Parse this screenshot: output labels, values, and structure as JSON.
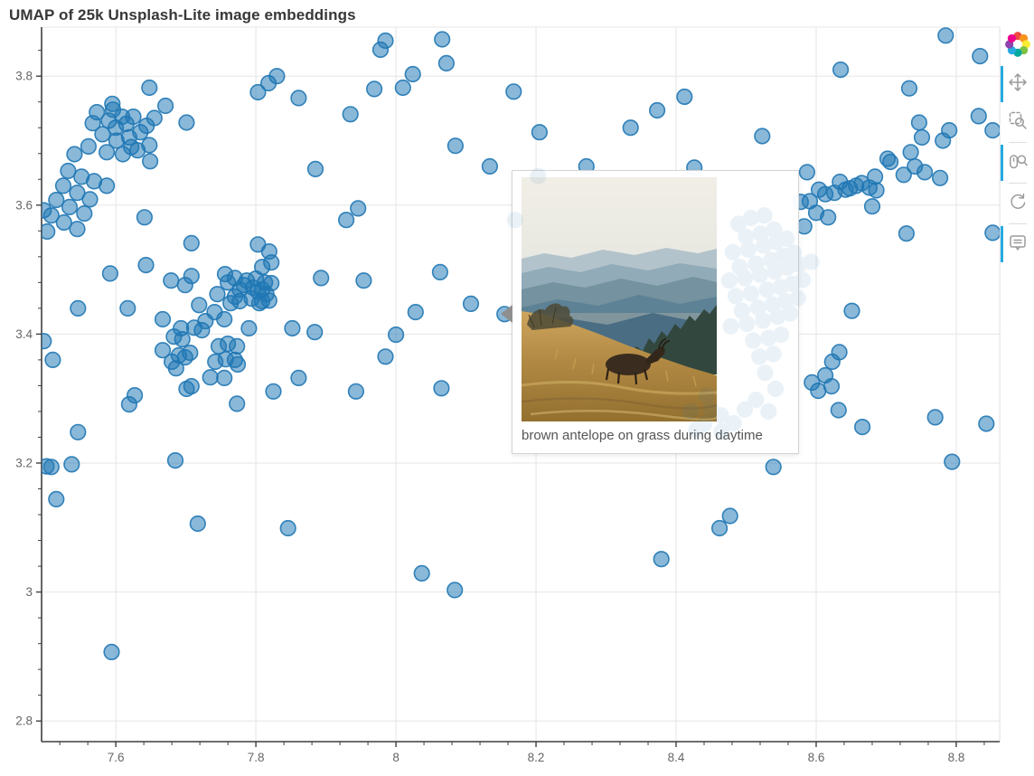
{
  "title": "UMAP of 25k Unsplash-Lite image embeddings",
  "tooltip": {
    "caption": "brown antelope on grass during daytime"
  },
  "toolbar": {
    "logo_name": "bokeh-logo",
    "logo_colors": [
      "#ef4a3e",
      "#f7941e",
      "#f9ed32",
      "#7dc242",
      "#00a79d",
      "#27aae1",
      "#8e44ad",
      "#ec008c"
    ],
    "active_color": "#26aae1",
    "icon_color": "#9b9b9b",
    "tools": [
      {
        "name": "pan",
        "label": "Pan",
        "active": true
      },
      {
        "name": "box-zoom",
        "label": "Box Zoom",
        "active": false
      },
      {
        "name": "wheel-zoom",
        "label": "Wheel Zoom",
        "active": true
      },
      {
        "name": "reset",
        "label": "Reset",
        "active": false
      },
      {
        "name": "hover",
        "label": "Hover",
        "active": true
      }
    ]
  },
  "chart_data": {
    "type": "scatter",
    "title": "UMAP of 25k Unsplash-Lite image embeddings",
    "xlabel": "",
    "ylabel": "",
    "grid": true,
    "x_range": [
      7.494,
      8.862
    ],
    "y_range": [
      2.768,
      3.876
    ],
    "x_ticks": {
      "values": [
        7.6,
        7.8,
        8.0,
        8.2,
        8.4,
        8.6,
        8.8
      ],
      "labels": [
        "7.6",
        "7.8",
        "8",
        "8.2",
        "8.4",
        "8.6",
        "8.8"
      ]
    },
    "y_ticks": {
      "values": [
        3.8,
        3.6,
        3.4,
        3.2,
        3.0,
        2.8
      ],
      "labels": [
        "3.8",
        "3.6",
        "3.4",
        "3.2",
        "3",
        "2.8"
      ]
    },
    "minor_tick_step": 0.04,
    "colors": {
      "fill": "#1f77b4",
      "fill_opacity": 0.52,
      "stroke": "#1f77b4",
      "stroke_opacity": 0.9,
      "grid": "#e5e5e5",
      "axis": "#3f3f3f",
      "tick_label": "#666666",
      "frame_outline": "#e5e5e5"
    },
    "marker_radius": 8.3,
    "hover_point": [
      8.155,
      3.431
    ],
    "points": [
      [
        7.985,
        3.855
      ],
      [
        7.978,
        3.841
      ],
      [
        8.066,
        3.857
      ],
      [
        8.072,
        3.82
      ],
      [
        8.024,
        3.803
      ],
      [
        8.01,
        3.782
      ],
      [
        8.168,
        3.776
      ],
      [
        8.205,
        3.713
      ],
      [
        7.83,
        3.8
      ],
      [
        7.818,
        3.789
      ],
      [
        7.803,
        3.775
      ],
      [
        7.861,
        3.766
      ],
      [
        7.648,
        3.782
      ],
      [
        7.671,
        3.754
      ],
      [
        7.595,
        3.757
      ],
      [
        7.609,
        3.737
      ],
      [
        7.701,
        3.728
      ],
      [
        7.935,
        3.741
      ],
      [
        7.969,
        3.78
      ],
      [
        8.085,
        3.692
      ],
      [
        8.134,
        3.66
      ],
      [
        7.573,
        3.744
      ],
      [
        7.59,
        3.731
      ],
      [
        7.6,
        3.72
      ],
      [
        7.615,
        3.726
      ],
      [
        7.625,
        3.737
      ],
      [
        7.581,
        3.71
      ],
      [
        7.601,
        3.7
      ],
      [
        7.619,
        3.705
      ],
      [
        7.635,
        3.713
      ],
      [
        7.561,
        3.691
      ],
      [
        7.587,
        3.682
      ],
      [
        7.61,
        3.679
      ],
      [
        7.631,
        3.685
      ],
      [
        7.648,
        3.693
      ],
      [
        7.541,
        3.679
      ],
      [
        7.655,
        3.735
      ],
      [
        7.596,
        3.748
      ],
      [
        7.567,
        3.727
      ],
      [
        7.644,
        3.723
      ],
      [
        7.622,
        3.69
      ],
      [
        7.641,
        3.581
      ],
      [
        7.649,
        3.668
      ],
      [
        7.532,
        3.653
      ],
      [
        7.551,
        3.644
      ],
      [
        7.569,
        3.637
      ],
      [
        7.587,
        3.63
      ],
      [
        7.525,
        3.63
      ],
      [
        7.545,
        3.619
      ],
      [
        7.563,
        3.609
      ],
      [
        7.515,
        3.608
      ],
      [
        7.534,
        3.597
      ],
      [
        7.555,
        3.587
      ],
      [
        7.508,
        3.584
      ],
      [
        7.526,
        3.573
      ],
      [
        7.545,
        3.563
      ],
      [
        7.502,
        3.559
      ],
      [
        7.497,
        3.592
      ],
      [
        7.592,
        3.494
      ],
      [
        7.546,
        3.44
      ],
      [
        7.617,
        3.44
      ],
      [
        7.643,
        3.507
      ],
      [
        7.497,
        3.389
      ],
      [
        7.51,
        3.36
      ],
      [
        7.708,
        3.541
      ],
      [
        7.627,
        3.305
      ],
      [
        7.619,
        3.291
      ],
      [
        7.546,
        3.248
      ],
      [
        7.501,
        3.195
      ],
      [
        7.508,
        3.194
      ],
      [
        7.537,
        3.198
      ],
      [
        7.515,
        3.144
      ],
      [
        7.685,
        3.204
      ],
      [
        7.717,
        3.106
      ],
      [
        7.846,
        3.099
      ],
      [
        8.037,
        3.029
      ],
      [
        8.084,
        3.003
      ],
      [
        7.594,
        2.907
      ],
      [
        7.708,
        3.49
      ],
      [
        7.699,
        3.476
      ],
      [
        7.719,
        3.445
      ],
      [
        7.667,
        3.423
      ],
      [
        7.741,
        3.434
      ],
      [
        7.728,
        3.42
      ],
      [
        7.755,
        3.423
      ],
      [
        7.693,
        3.409
      ],
      [
        7.712,
        3.41
      ],
      [
        7.723,
        3.406
      ],
      [
        7.683,
        3.396
      ],
      [
        7.695,
        3.392
      ],
      [
        7.667,
        3.375
      ],
      [
        7.706,
        3.371
      ],
      [
        7.69,
        3.367
      ],
      [
        7.699,
        3.364
      ],
      [
        7.68,
        3.357
      ],
      [
        7.686,
        3.347
      ],
      [
        7.747,
        3.381
      ],
      [
        7.76,
        3.385
      ],
      [
        7.773,
        3.381
      ],
      [
        7.757,
        3.361
      ],
      [
        7.77,
        3.36
      ],
      [
        7.742,
        3.357
      ],
      [
        7.774,
        3.353
      ],
      [
        7.735,
        3.333
      ],
      [
        7.755,
        3.332
      ],
      [
        7.708,
        3.319
      ],
      [
        7.679,
        3.483
      ],
      [
        7.77,
        3.487
      ],
      [
        7.787,
        3.483
      ],
      [
        7.8,
        3.486
      ],
      [
        7.813,
        3.48
      ],
      [
        7.777,
        3.469
      ],
      [
        7.796,
        3.472
      ],
      [
        7.809,
        3.469
      ],
      [
        7.822,
        3.479
      ],
      [
        7.794,
        3.455
      ],
      [
        7.777,
        3.451
      ],
      [
        7.764,
        3.448
      ],
      [
        7.809,
        3.451
      ],
      [
        7.819,
        3.452
      ],
      [
        7.76,
        3.48
      ],
      [
        7.756,
        3.493
      ],
      [
        7.745,
        3.462
      ],
      [
        7.805,
        3.448
      ],
      [
        7.79,
        3.409
      ],
      [
        7.783,
        3.476
      ],
      [
        7.803,
        3.466
      ],
      [
        7.815,
        3.462
      ],
      [
        7.77,
        3.458
      ],
      [
        7.809,
        3.504
      ],
      [
        7.822,
        3.511
      ],
      [
        7.803,
        3.539
      ],
      [
        7.819,
        3.528
      ],
      [
        7.852,
        3.409
      ],
      [
        7.954,
        3.483
      ],
      [
        8.0,
        3.399
      ],
      [
        7.884,
        3.403
      ],
      [
        7.885,
        3.656
      ],
      [
        7.929,
        3.577
      ],
      [
        7.946,
        3.595
      ],
      [
        7.893,
        3.487
      ],
      [
        7.985,
        3.365
      ],
      [
        7.943,
        3.311
      ],
      [
        8.065,
        3.316
      ],
      [
        8.107,
        3.447
      ],
      [
        8.063,
        3.496
      ],
      [
        8.028,
        3.434
      ],
      [
        7.861,
        3.332
      ],
      [
        7.825,
        3.311
      ],
      [
        7.773,
        3.292
      ],
      [
        7.701,
        3.315
      ],
      [
        8.272,
        3.66
      ],
      [
        8.426,
        3.658
      ],
      [
        8.373,
        3.747
      ],
      [
        8.412,
        3.768
      ],
      [
        8.335,
        3.72
      ],
      [
        8.523,
        3.707
      ],
      [
        8.733,
        3.781
      ],
      [
        8.635,
        3.81
      ],
      [
        8.834,
        3.831
      ],
      [
        8.785,
        3.863
      ],
      [
        8.648,
        3.626
      ],
      [
        8.657,
        3.63
      ],
      [
        8.665,
        3.634
      ],
      [
        8.676,
        3.627
      ],
      [
        8.684,
        3.644
      ],
      [
        8.686,
        3.623
      ],
      [
        8.702,
        3.672
      ],
      [
        8.706,
        3.667
      ],
      [
        8.725,
        3.647
      ],
      [
        8.729,
        3.556
      ],
      [
        8.735,
        3.682
      ],
      [
        8.741,
        3.66
      ],
      [
        8.747,
        3.728
      ],
      [
        8.751,
        3.705
      ],
      [
        8.755,
        3.651
      ],
      [
        8.777,
        3.642
      ],
      [
        8.781,
        3.7
      ],
      [
        8.79,
        3.716
      ],
      [
        8.832,
        3.738
      ],
      [
        8.68,
        3.598
      ],
      [
        8.587,
        3.651
      ],
      [
        8.604,
        3.624
      ],
      [
        8.613,
        3.617
      ],
      [
        8.626,
        3.619
      ],
      [
        8.634,
        3.636
      ],
      [
        8.642,
        3.624
      ],
      [
        8.591,
        3.606
      ],
      [
        8.578,
        3.605
      ],
      [
        8.6,
        3.588
      ],
      [
        8.617,
        3.581
      ],
      [
        8.583,
        3.567
      ],
      [
        8.852,
        3.716
      ],
      [
        8.852,
        3.557
      ],
      [
        8.651,
        3.436
      ],
      [
        8.633,
        3.372
      ],
      [
        8.623,
        3.357
      ],
      [
        8.613,
        3.336
      ],
      [
        8.622,
        3.319
      ],
      [
        8.594,
        3.325
      ],
      [
        8.603,
        3.312
      ],
      [
        8.632,
        3.282
      ],
      [
        8.666,
        3.256
      ],
      [
        8.77,
        3.271
      ],
      [
        8.843,
        3.261
      ],
      [
        8.794,
        3.202
      ],
      [
        8.539,
        3.194
      ],
      [
        8.477,
        3.118
      ],
      [
        8.462,
        3.099
      ],
      [
        8.379,
        3.051
      ]
    ],
    "ghost_points": [
      [
        8.489,
        3.571
      ],
      [
        8.507,
        3.58
      ],
      [
        8.526,
        3.584
      ],
      [
        8.5,
        3.551
      ],
      [
        8.521,
        3.556
      ],
      [
        8.54,
        3.562
      ],
      [
        8.481,
        3.527
      ],
      [
        8.503,
        3.531
      ],
      [
        8.525,
        3.537
      ],
      [
        8.543,
        3.543
      ],
      [
        8.558,
        3.548
      ],
      [
        8.491,
        3.504
      ],
      [
        8.514,
        3.509
      ],
      [
        8.536,
        3.515
      ],
      [
        8.553,
        3.521
      ],
      [
        8.568,
        3.526
      ],
      [
        8.476,
        3.483
      ],
      [
        8.498,
        3.487
      ],
      [
        8.52,
        3.492
      ],
      [
        8.541,
        3.497
      ],
      [
        8.559,
        3.503
      ],
      [
        8.576,
        3.508
      ],
      [
        8.593,
        3.512
      ],
      [
        8.485,
        3.459
      ],
      [
        8.507,
        3.463
      ],
      [
        8.53,
        3.469
      ],
      [
        8.549,
        3.473
      ],
      [
        8.566,
        3.478
      ],
      [
        8.581,
        3.484
      ],
      [
        8.494,
        3.436
      ],
      [
        8.517,
        3.441
      ],
      [
        8.538,
        3.446
      ],
      [
        8.556,
        3.451
      ],
      [
        8.574,
        3.456
      ],
      [
        8.478,
        3.412
      ],
      [
        8.501,
        3.416
      ],
      [
        8.524,
        3.421
      ],
      [
        8.545,
        3.427
      ],
      [
        8.563,
        3.432
      ],
      [
        8.51,
        3.39
      ],
      [
        8.532,
        3.394
      ],
      [
        8.55,
        3.399
      ],
      [
        8.519,
        3.365
      ],
      [
        8.539,
        3.369
      ],
      [
        8.527,
        3.34
      ],
      [
        8.542,
        3.315
      ],
      [
        8.514,
        3.298
      ],
      [
        8.532,
        3.28
      ],
      [
        8.498,
        3.283
      ],
      [
        8.482,
        3.262
      ],
      [
        8.464,
        3.274
      ],
      [
        8.444,
        3.305
      ],
      [
        8.421,
        3.28
      ],
      [
        8.44,
        3.26
      ],
      [
        8.465,
        3.249
      ],
      [
        8.429,
        3.252
      ],
      [
        8.45,
        3.282
      ],
      [
        8.203,
        3.645
      ],
      [
        8.17,
        3.577
      ]
    ]
  }
}
